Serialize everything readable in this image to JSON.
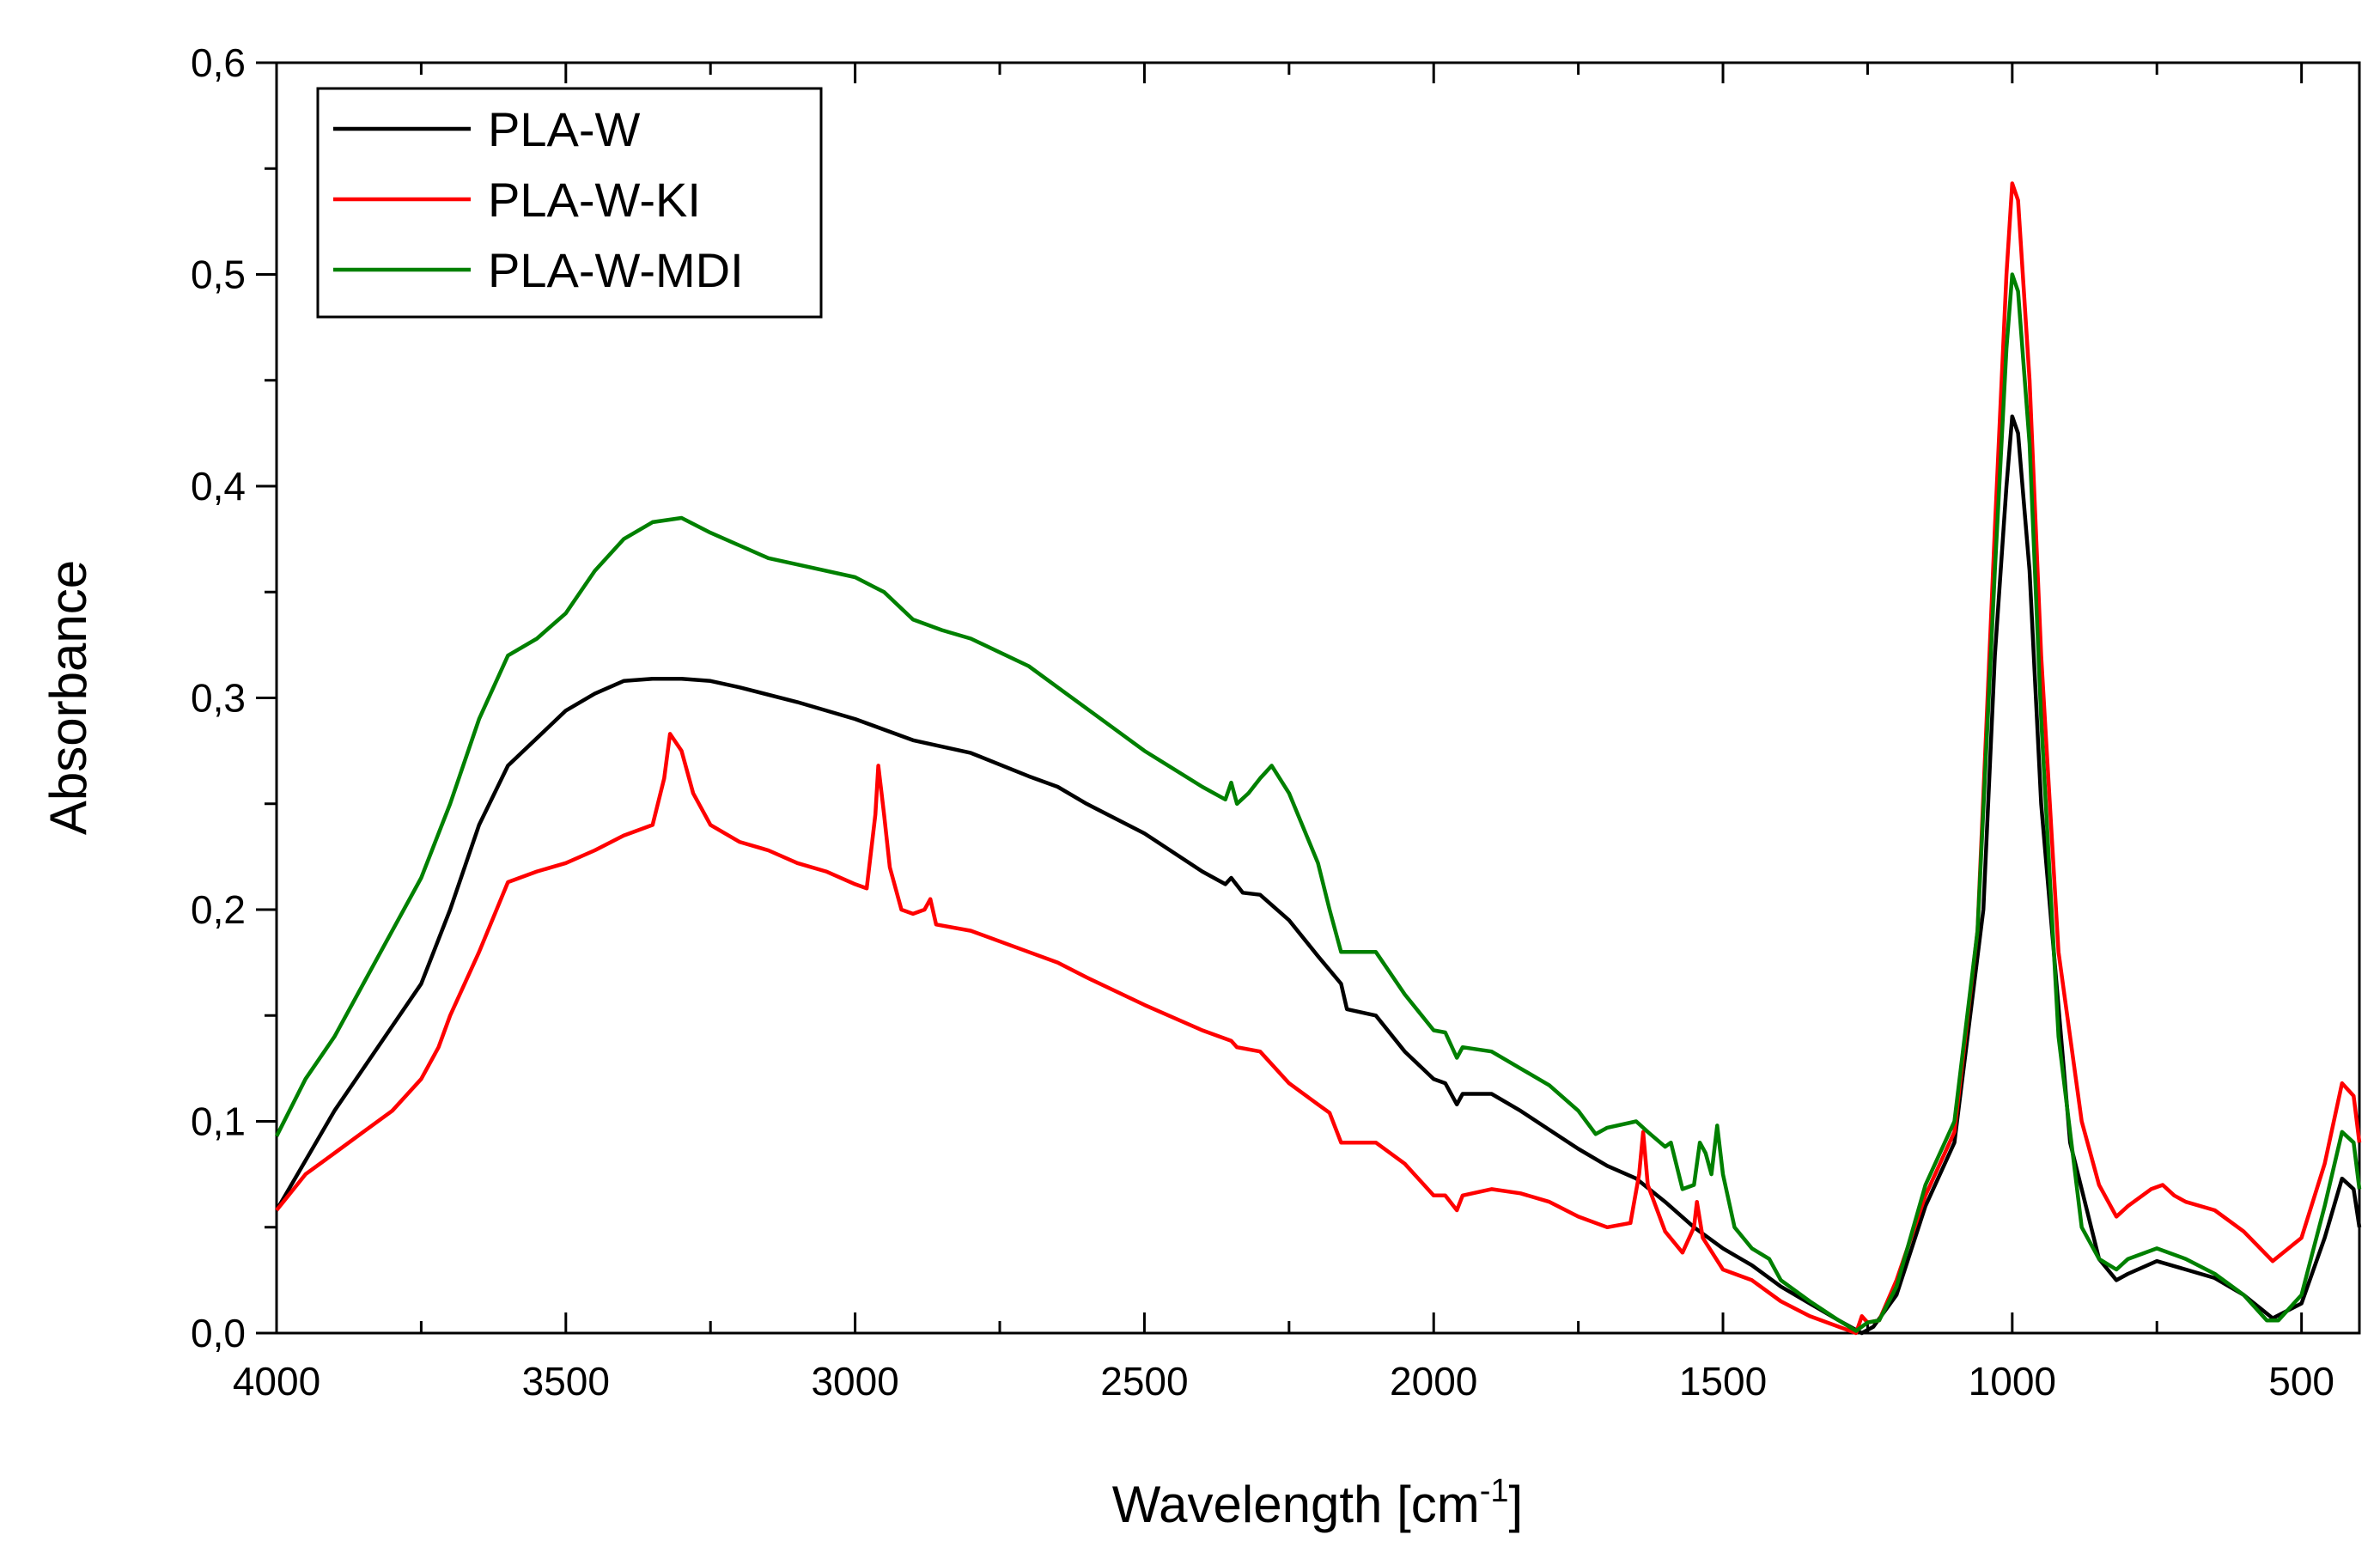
{
  "chart_data": {
    "type": "line",
    "title": "",
    "xlabel": "Wavelength [cm",
    "xlabel_sup": "-1",
    "xlabel_suffix": "]",
    "ylabel": "Absorbance",
    "xlim": [
      4000,
      400
    ],
    "ylim": [
      0,
      0.6
    ],
    "x_ticks": [
      4000,
      3500,
      3000,
      2500,
      2000,
      1500,
      1000,
      500
    ],
    "x_tick_labels": [
      "4000",
      "3500",
      "3000",
      "2500",
      "2000",
      "1500",
      "1000",
      "500"
    ],
    "y_ticks": [
      0,
      0.1,
      0.2,
      0.3,
      0.4,
      0.5,
      0.6
    ],
    "y_tick_labels": [
      "0,0",
      "0,1",
      "0,2",
      "0,3",
      "0,4",
      "0,5",
      "0,6"
    ],
    "grid": false,
    "legend_position": "top-left",
    "series": [
      {
        "name": "PLA-W",
        "color": "#000000",
        "points": [
          [
            4000,
            0.058
          ],
          [
            3900,
            0.105
          ],
          [
            3800,
            0.145
          ],
          [
            3750,
            0.165
          ],
          [
            3700,
            0.2
          ],
          [
            3650,
            0.24
          ],
          [
            3600,
            0.268
          ],
          [
            3500,
            0.294
          ],
          [
            3450,
            0.302
          ],
          [
            3400,
            0.308
          ],
          [
            3350,
            0.309
          ],
          [
            3300,
            0.309
          ],
          [
            3250,
            0.308
          ],
          [
            3200,
            0.305
          ],
          [
            3100,
            0.298
          ],
          [
            3000,
            0.29
          ],
          [
            2900,
            0.28
          ],
          [
            2800,
            0.274
          ],
          [
            2700,
            0.263
          ],
          [
            2650,
            0.258
          ],
          [
            2600,
            0.25
          ],
          [
            2500,
            0.236
          ],
          [
            2400,
            0.218
          ],
          [
            2360,
            0.212
          ],
          [
            2350,
            0.215
          ],
          [
            2330,
            0.208
          ],
          [
            2300,
            0.207
          ],
          [
            2250,
            0.195
          ],
          [
            2200,
            0.178
          ],
          [
            2160,
            0.165
          ],
          [
            2150,
            0.153
          ],
          [
            2100,
            0.15
          ],
          [
            2050,
            0.133
          ],
          [
            2000,
            0.12
          ],
          [
            1980,
            0.118
          ],
          [
            1960,
            0.108
          ],
          [
            1950,
            0.113
          ],
          [
            1900,
            0.113
          ],
          [
            1850,
            0.105
          ],
          [
            1800,
            0.096
          ],
          [
            1750,
            0.087
          ],
          [
            1700,
            0.079
          ],
          [
            1650,
            0.073
          ],
          [
            1600,
            0.062
          ],
          [
            1550,
            0.05
          ],
          [
            1500,
            0.04
          ],
          [
            1450,
            0.032
          ],
          [
            1400,
            0.022
          ],
          [
            1350,
            0.014
          ],
          [
            1300,
            0.006
          ],
          [
            1260,
            0.0
          ],
          [
            1240,
            0.003
          ],
          [
            1200,
            0.018
          ],
          [
            1150,
            0.06
          ],
          [
            1100,
            0.09
          ],
          [
            1050,
            0.2
          ],
          [
            1030,
            0.32
          ],
          [
            1010,
            0.4
          ],
          [
            1000,
            0.433
          ],
          [
            990,
            0.425
          ],
          [
            970,
            0.36
          ],
          [
            950,
            0.25
          ],
          [
            900,
            0.09
          ],
          [
            850,
            0.035
          ],
          [
            820,
            0.025
          ],
          [
            800,
            0.028
          ],
          [
            750,
            0.034
          ],
          [
            700,
            0.03
          ],
          [
            650,
            0.026
          ],
          [
            600,
            0.018
          ],
          [
            550,
            0.007
          ],
          [
            500,
            0.014
          ],
          [
            460,
            0.045
          ],
          [
            430,
            0.073
          ],
          [
            410,
            0.068
          ],
          [
            400,
            0.05
          ]
        ]
      },
      {
        "name": "PLA-W-KI",
        "color": "#ff0000",
        "points": [
          [
            4000,
            0.058
          ],
          [
            3950,
            0.075
          ],
          [
            3900,
            0.085
          ],
          [
            3850,
            0.095
          ],
          [
            3800,
            0.105
          ],
          [
            3750,
            0.12
          ],
          [
            3720,
            0.135
          ],
          [
            3700,
            0.15
          ],
          [
            3650,
            0.18
          ],
          [
            3600,
            0.213
          ],
          [
            3550,
            0.218
          ],
          [
            3500,
            0.222
          ],
          [
            3450,
            0.228
          ],
          [
            3400,
            0.235
          ],
          [
            3350,
            0.24
          ],
          [
            3330,
            0.262
          ],
          [
            3320,
            0.283
          ],
          [
            3300,
            0.275
          ],
          [
            3280,
            0.255
          ],
          [
            3250,
            0.24
          ],
          [
            3200,
            0.232
          ],
          [
            3150,
            0.228
          ],
          [
            3100,
            0.222
          ],
          [
            3050,
            0.218
          ],
          [
            3000,
            0.212
          ],
          [
            2980,
            0.21
          ],
          [
            2965,
            0.245
          ],
          [
            2960,
            0.268
          ],
          [
            2950,
            0.245
          ],
          [
            2940,
            0.22
          ],
          [
            2920,
            0.2
          ],
          [
            2900,
            0.198
          ],
          [
            2880,
            0.2
          ],
          [
            2870,
            0.205
          ],
          [
            2860,
            0.193
          ],
          [
            2800,
            0.19
          ],
          [
            2700,
            0.18
          ],
          [
            2650,
            0.175
          ],
          [
            2600,
            0.168
          ],
          [
            2500,
            0.155
          ],
          [
            2400,
            0.143
          ],
          [
            2350,
            0.138
          ],
          [
            2340,
            0.135
          ],
          [
            2300,
            0.133
          ],
          [
            2250,
            0.118
          ],
          [
            2200,
            0.108
          ],
          [
            2180,
            0.104
          ],
          [
            2160,
            0.09
          ],
          [
            2100,
            0.09
          ],
          [
            2050,
            0.08
          ],
          [
            2000,
            0.065
          ],
          [
            1980,
            0.065
          ],
          [
            1960,
            0.058
          ],
          [
            1950,
            0.065
          ],
          [
            1900,
            0.068
          ],
          [
            1850,
            0.066
          ],
          [
            1800,
            0.062
          ],
          [
            1750,
            0.055
          ],
          [
            1700,
            0.05
          ],
          [
            1660,
            0.052
          ],
          [
            1645,
            0.075
          ],
          [
            1638,
            0.095
          ],
          [
            1630,
            0.07
          ],
          [
            1600,
            0.048
          ],
          [
            1570,
            0.038
          ],
          [
            1550,
            0.05
          ],
          [
            1545,
            0.062
          ],
          [
            1535,
            0.045
          ],
          [
            1500,
            0.03
          ],
          [
            1450,
            0.025
          ],
          [
            1400,
            0.015
          ],
          [
            1350,
            0.008
          ],
          [
            1300,
            0.003
          ],
          [
            1270,
            0.0
          ],
          [
            1260,
            0.008
          ],
          [
            1250,
            0.005
          ],
          [
            1230,
            0.006
          ],
          [
            1200,
            0.025
          ],
          [
            1150,
            0.065
          ],
          [
            1100,
            0.095
          ],
          [
            1060,
            0.19
          ],
          [
            1030,
            0.38
          ],
          [
            1010,
            0.5
          ],
          [
            1000,
            0.543
          ],
          [
            990,
            0.535
          ],
          [
            970,
            0.45
          ],
          [
            950,
            0.32
          ],
          [
            920,
            0.18
          ],
          [
            880,
            0.1
          ],
          [
            850,
            0.07
          ],
          [
            820,
            0.055
          ],
          [
            800,
            0.06
          ],
          [
            760,
            0.068
          ],
          [
            740,
            0.07
          ],
          [
            720,
            0.065
          ],
          [
            700,
            0.062
          ],
          [
            650,
            0.058
          ],
          [
            600,
            0.048
          ],
          [
            550,
            0.034
          ],
          [
            500,
            0.045
          ],
          [
            460,
            0.08
          ],
          [
            430,
            0.118
          ],
          [
            410,
            0.112
          ],
          [
            400,
            0.09
          ]
        ]
      },
      {
        "name": "PLA-W-MDI",
        "color": "#008000",
        "points": [
          [
            4000,
            0.093
          ],
          [
            3950,
            0.12
          ],
          [
            3900,
            0.14
          ],
          [
            3850,
            0.165
          ],
          [
            3800,
            0.19
          ],
          [
            3750,
            0.215
          ],
          [
            3700,
            0.25
          ],
          [
            3650,
            0.29
          ],
          [
            3600,
            0.32
          ],
          [
            3550,
            0.328
          ],
          [
            3500,
            0.34
          ],
          [
            3450,
            0.36
          ],
          [
            3400,
            0.375
          ],
          [
            3350,
            0.383
          ],
          [
            3300,
            0.385
          ],
          [
            3250,
            0.378
          ],
          [
            3200,
            0.372
          ],
          [
            3150,
            0.366
          ],
          [
            3100,
            0.363
          ],
          [
            3000,
            0.357
          ],
          [
            2950,
            0.35
          ],
          [
            2900,
            0.337
          ],
          [
            2850,
            0.332
          ],
          [
            2800,
            0.328
          ],
          [
            2700,
            0.315
          ],
          [
            2650,
            0.305
          ],
          [
            2600,
            0.295
          ],
          [
            2500,
            0.275
          ],
          [
            2400,
            0.258
          ],
          [
            2360,
            0.252
          ],
          [
            2350,
            0.26
          ],
          [
            2340,
            0.25
          ],
          [
            2320,
            0.255
          ],
          [
            2300,
            0.262
          ],
          [
            2290,
            0.265
          ],
          [
            2280,
            0.268
          ],
          [
            2250,
            0.255
          ],
          [
            2200,
            0.222
          ],
          [
            2180,
            0.2
          ],
          [
            2160,
            0.18
          ],
          [
            2100,
            0.18
          ],
          [
            2050,
            0.16
          ],
          [
            2000,
            0.143
          ],
          [
            1980,
            0.142
          ],
          [
            1960,
            0.13
          ],
          [
            1950,
            0.135
          ],
          [
            1900,
            0.133
          ],
          [
            1850,
            0.125
          ],
          [
            1800,
            0.117
          ],
          [
            1750,
            0.105
          ],
          [
            1720,
            0.094
          ],
          [
            1700,
            0.097
          ],
          [
            1650,
            0.1
          ],
          [
            1630,
            0.095
          ],
          [
            1600,
            0.088
          ],
          [
            1590,
            0.09
          ],
          [
            1570,
            0.068
          ],
          [
            1550,
            0.07
          ],
          [
            1540,
            0.09
          ],
          [
            1530,
            0.085
          ],
          [
            1520,
            0.075
          ],
          [
            1510,
            0.098
          ],
          [
            1500,
            0.075
          ],
          [
            1480,
            0.05
          ],
          [
            1450,
            0.04
          ],
          [
            1420,
            0.035
          ],
          [
            1400,
            0.025
          ],
          [
            1350,
            0.015
          ],
          [
            1300,
            0.006
          ],
          [
            1270,
            0.001
          ],
          [
            1250,
            0.005
          ],
          [
            1230,
            0.006
          ],
          [
            1200,
            0.022
          ],
          [
            1150,
            0.07
          ],
          [
            1100,
            0.1
          ],
          [
            1060,
            0.19
          ],
          [
            1030,
            0.36
          ],
          [
            1010,
            0.465
          ],
          [
            1000,
            0.5
          ],
          [
            990,
            0.492
          ],
          [
            970,
            0.42
          ],
          [
            950,
            0.29
          ],
          [
            920,
            0.14
          ],
          [
            880,
            0.05
          ],
          [
            850,
            0.035
          ],
          [
            820,
            0.03
          ],
          [
            800,
            0.035
          ],
          [
            750,
            0.04
          ],
          [
            700,
            0.035
          ],
          [
            650,
            0.028
          ],
          [
            600,
            0.018
          ],
          [
            560,
            0.006
          ],
          [
            540,
            0.006
          ],
          [
            500,
            0.018
          ],
          [
            460,
            0.06
          ],
          [
            430,
            0.095
          ],
          [
            410,
            0.09
          ],
          [
            400,
            0.068
          ]
        ]
      }
    ]
  }
}
